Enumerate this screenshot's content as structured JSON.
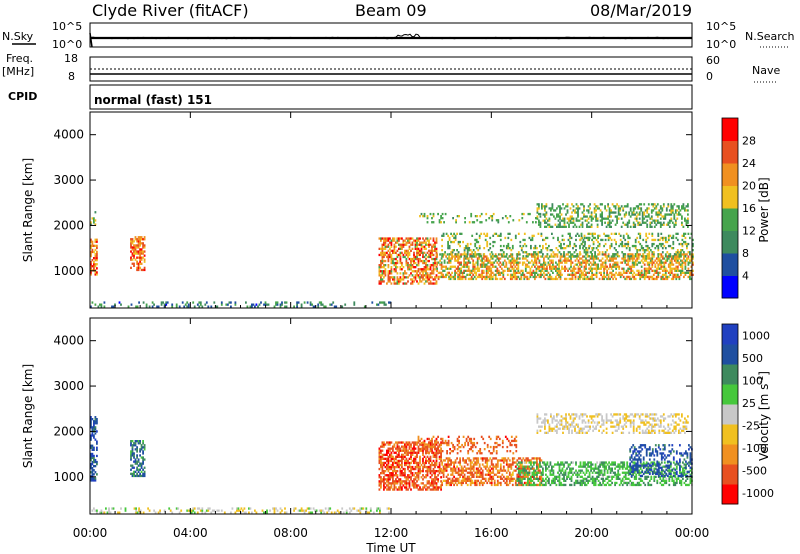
{
  "header": {
    "station": "Clyde River (fitACF)",
    "beam": "Beam 09",
    "date": "08/Mar/2019"
  },
  "noise_panel": {
    "left_label": "N.Sky",
    "left_ticks": [
      "10^5",
      "10^0"
    ],
    "right_ticks": [
      "10^5",
      "10^0"
    ],
    "right_label": "N.Search"
  },
  "freq_panel": {
    "label_top": "Freq.",
    "label_unit": "[MHz]",
    "left_ticks": [
      "18",
      "8"
    ],
    "right_ticks": [
      "60",
      "0"
    ],
    "right_label": "Nave"
  },
  "cpid_panel": {
    "label": "CPID",
    "value": "normal (fast) 151"
  },
  "chart_data": [
    {
      "type": "heatmap",
      "title": "",
      "xlabel": "",
      "ylabel": "Slant Range [km]",
      "x_ticks": [
        "00:00",
        "04:00",
        "08:00",
        "12:00",
        "16:00",
        "20:00",
        "00:00"
      ],
      "xlim_hours": [
        0,
        24
      ],
      "y_ticks": [
        1000,
        2000,
        3000,
        4000
      ],
      "ylim": [
        180,
        4500
      ],
      "colorbar": {
        "label": "Power [dB]",
        "tick_labels": [
          "4",
          "8",
          "12",
          "16",
          "20",
          "24",
          "28"
        ],
        "range": [
          0,
          30
        ],
        "colors": [
          "#0000ff",
          "#1f4fa0",
          "#3e8a5e",
          "#46a44c",
          "#f0c020",
          "#f09020",
          "#e85020",
          "#ff0000"
        ]
      },
      "scatter_regions": [
        {
          "t": [
            0.0,
            0.25
          ],
          "r": [
            900,
            1700
          ],
          "density": 0.55,
          "level": [
            0.55,
            0.95
          ]
        },
        {
          "t": [
            0.0,
            0.2
          ],
          "r": [
            2000,
            2300
          ],
          "density": 0.3,
          "level": [
            0.3,
            0.6
          ]
        },
        {
          "t": [
            1.6,
            2.2
          ],
          "r": [
            1000,
            1750
          ],
          "density": 0.6,
          "level": [
            0.55,
            0.95
          ]
        },
        {
          "t": [
            0.0,
            12.0
          ],
          "r": [
            190,
            300
          ],
          "density": 0.25,
          "level": [
            0.1,
            0.5
          ]
        },
        {
          "t": [
            11.5,
            13.8
          ],
          "r": [
            700,
            1700
          ],
          "density": 0.6,
          "level": [
            0.45,
            0.95
          ]
        },
        {
          "t": [
            13.8,
            24.0
          ],
          "r": [
            800,
            1350
          ],
          "density": 0.55,
          "level": [
            0.4,
            0.8
          ]
        },
        {
          "t": [
            14.0,
            20.0
          ],
          "r": [
            1300,
            1800
          ],
          "density": 0.25,
          "level": [
            0.3,
            0.6
          ]
        },
        {
          "t": [
            17.8,
            23.8
          ],
          "r": [
            1950,
            2450
          ],
          "density": 0.4,
          "level": [
            0.3,
            0.55
          ]
        },
        {
          "t": [
            13.0,
            18.0
          ],
          "r": [
            2050,
            2250
          ],
          "density": 0.2,
          "level": [
            0.35,
            0.55
          ]
        },
        {
          "t": [
            19.5,
            24.0
          ],
          "r": [
            1300,
            1800
          ],
          "density": 0.3,
          "level": [
            0.3,
            0.6
          ]
        }
      ]
    },
    {
      "type": "heatmap",
      "title": "",
      "xlabel": "Time UT",
      "ylabel": "Slant Range [km]",
      "x_ticks": [
        "00:00",
        "04:00",
        "08:00",
        "12:00",
        "16:00",
        "20:00",
        "00:00"
      ],
      "xlim_hours": [
        0,
        24
      ],
      "y_ticks": [
        1000,
        2000,
        3000,
        4000
      ],
      "ylim": [
        180,
        4500
      ],
      "colorbar": {
        "label": "Velocity [m s^-1]",
        "tick_labels": [
          "1000",
          "500",
          "100",
          "25",
          "-25",
          "-100",
          "-500",
          "-1000"
        ],
        "colors": [
          "#ff0000",
          "#e85020",
          "#f09020",
          "#f0c020",
          "#c8c8c8",
          "#46c83c",
          "#3e8a5e",
          "#1f4fa0",
          "#2040c0"
        ]
      },
      "scatter_regions": [
        {
          "t": [
            0.0,
            0.25
          ],
          "r": [
            900,
            2300
          ],
          "density": 0.55,
          "level": [
            0.75,
            0.95
          ]
        },
        {
          "t": [
            1.6,
            2.2
          ],
          "r": [
            1000,
            1800
          ],
          "density": 0.6,
          "level": [
            0.65,
            0.9
          ]
        },
        {
          "t": [
            0.0,
            12.0
          ],
          "r": [
            190,
            320
          ],
          "density": 0.3,
          "level": [
            0.35,
            0.6
          ]
        },
        {
          "t": [
            11.5,
            14.0
          ],
          "r": [
            700,
            1750
          ],
          "density": 0.6,
          "level": [
            0.05,
            0.3
          ]
        },
        {
          "t": [
            14.0,
            18.0
          ],
          "r": [
            800,
            1400
          ],
          "density": 0.55,
          "level": [
            0.1,
            0.35
          ]
        },
        {
          "t": [
            17.0,
            24.0
          ],
          "r": [
            800,
            1300
          ],
          "density": 0.5,
          "level": [
            0.55,
            0.75
          ]
        },
        {
          "t": [
            17.8,
            23.8
          ],
          "r": [
            1950,
            2400
          ],
          "density": 0.4,
          "level": [
            0.4,
            0.5
          ]
        },
        {
          "t": [
            21.5,
            24.0
          ],
          "r": [
            1000,
            1700
          ],
          "density": 0.35,
          "level": [
            0.75,
            0.95
          ]
        },
        {
          "t": [
            13.0,
            17.0
          ],
          "r": [
            1500,
            1900
          ],
          "density": 0.3,
          "level": [
            0.1,
            0.3
          ]
        }
      ]
    }
  ]
}
